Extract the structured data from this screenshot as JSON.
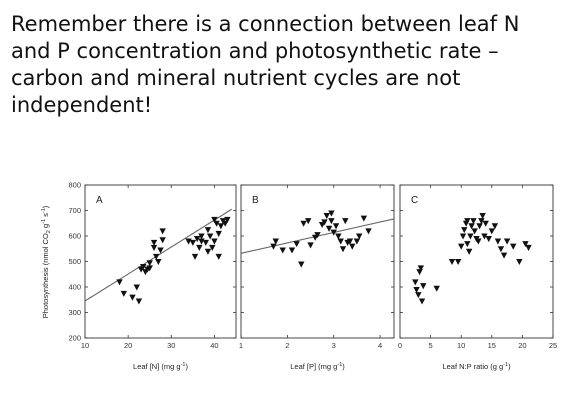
{
  "slide": {
    "lines": [
      "Remember there is a connection between leaf N",
      "and P concentration and photosynthetic rate –",
      "carbon and mineral nutrient cycles are not",
      "independent!"
    ]
  },
  "figure": {
    "ylabel_parts": [
      "Photosynthesis (nmol CO",
      "2",
      " g",
      "-1",
      " s",
      "-1",
      ")"
    ],
    "yticks": [
      "800",
      "700",
      "600",
      "500",
      "400",
      "300",
      "200"
    ]
  },
  "chart_data": [
    {
      "type": "scatter",
      "panel": "A",
      "xlabel_parts": [
        "Leaf [N] (mg g",
        "-1",
        ")"
      ],
      "ylabel": "Photosynthesis (nmol CO2 g-1 s-1)",
      "xlim": [
        10,
        45
      ],
      "ylim": [
        200,
        800
      ],
      "xticks": [
        "10",
        "20",
        "30",
        "40"
      ],
      "fit_line": {
        "x": [
          10,
          44
        ],
        "y": [
          345,
          705
        ]
      },
      "points": [
        [
          18,
          420
        ],
        [
          19,
          375
        ],
        [
          21,
          360
        ],
        [
          22,
          400
        ],
        [
          22.5,
          345
        ],
        [
          23,
          470
        ],
        [
          23.5,
          480
        ],
        [
          24,
          460
        ],
        [
          24.5,
          470
        ],
        [
          25,
          475
        ],
        [
          25,
          495
        ],
        [
          26,
          555
        ],
        [
          26,
          575
        ],
        [
          26.5,
          520
        ],
        [
          27,
          500
        ],
        [
          27.5,
          545
        ],
        [
          28,
          585
        ],
        [
          28,
          620
        ],
        [
          34,
          580
        ],
        [
          35,
          575
        ],
        [
          35.5,
          520
        ],
        [
          36,
          590
        ],
        [
          36.5,
          555
        ],
        [
          37,
          600
        ],
        [
          37,
          580
        ],
        [
          38,
          575
        ],
        [
          38.5,
          540
        ],
        [
          38.5,
          625
        ],
        [
          39,
          600
        ],
        [
          39.5,
          555
        ],
        [
          40,
          580
        ],
        [
          40,
          665
        ],
        [
          40.5,
          650
        ],
        [
          41,
          610
        ],
        [
          41,
          520
        ],
        [
          42,
          660
        ],
        [
          42.5,
          650
        ],
        [
          43,
          665
        ],
        [
          41.5,
          640
        ]
      ]
    },
    {
      "type": "scatter",
      "panel": "B",
      "xlabel_parts": [
        "Leaf [P] (mg g",
        "-1",
        ")"
      ],
      "xlim": [
        1,
        4.3
      ],
      "ylim": [
        200,
        800
      ],
      "xticks": [
        "1",
        "2",
        "3",
        "4"
      ],
      "fit_line": {
        "x": [
          1,
          4.3
        ],
        "y": [
          532,
          667
        ]
      },
      "points": [
        [
          1.7,
          560
        ],
        [
          1.75,
          580
        ],
        [
          1.9,
          545
        ],
        [
          2.1,
          545
        ],
        [
          2.2,
          570
        ],
        [
          2.3,
          490
        ],
        [
          2.35,
          650
        ],
        [
          2.45,
          660
        ],
        [
          2.5,
          565
        ],
        [
          2.6,
          595
        ],
        [
          2.65,
          605
        ],
        [
          2.75,
          645
        ],
        [
          2.8,
          655
        ],
        [
          2.85,
          680
        ],
        [
          2.9,
          630
        ],
        [
          2.95,
          660
        ],
        [
          3.0,
          615
        ],
        [
          3.05,
          640
        ],
        [
          3.1,
          600
        ],
        [
          3.15,
          580
        ],
        [
          3.2,
          550
        ],
        [
          3.25,
          660
        ],
        [
          3.3,
          575
        ],
        [
          3.4,
          560
        ],
        [
          3.5,
          580
        ],
        [
          3.55,
          600
        ],
        [
          3.65,
          670
        ],
        [
          3.75,
          620
        ],
        [
          2.95,
          690
        ],
        [
          3.35,
          580
        ]
      ]
    },
    {
      "type": "scatter",
      "panel": "C",
      "xlabel_parts": [
        "Leaf N:P ratio (g g",
        "-1",
        ")"
      ],
      "xlim": [
        0,
        25
      ],
      "ylim": [
        200,
        800
      ],
      "xticks": [
        "0",
        "5",
        "10",
        "15",
        "20",
        "25"
      ],
      "points": [
        [
          2.5,
          420
        ],
        [
          2.7,
          390
        ],
        [
          3.0,
          370
        ],
        [
          3.2,
          460
        ],
        [
          3.4,
          475
        ],
        [
          3.6,
          345
        ],
        [
          3.8,
          405
        ],
        [
          6,
          395
        ],
        [
          8.5,
          500
        ],
        [
          9.5,
          500
        ],
        [
          10,
          560
        ],
        [
          10.3,
          600
        ],
        [
          10.5,
          625
        ],
        [
          10.8,
          650
        ],
        [
          11,
          660
        ],
        [
          11,
          570
        ],
        [
          11.3,
          540
        ],
        [
          11.5,
          600
        ],
        [
          11.7,
          640
        ],
        [
          12,
          660
        ],
        [
          12.2,
          620
        ],
        [
          12.5,
          590
        ],
        [
          12.8,
          580
        ],
        [
          13,
          640
        ],
        [
          13.3,
          660
        ],
        [
          13.5,
          680
        ],
        [
          13.8,
          600
        ],
        [
          14,
          650
        ],
        [
          14.5,
          590
        ],
        [
          15,
          620
        ],
        [
          15.5,
          640
        ],
        [
          16,
          580
        ],
        [
          16.5,
          550
        ],
        [
          17,
          525
        ],
        [
          17.5,
          580
        ],
        [
          18.5,
          560
        ],
        [
          19.5,
          500
        ],
        [
          20.5,
          570
        ],
        [
          21,
          555
        ]
      ]
    }
  ]
}
